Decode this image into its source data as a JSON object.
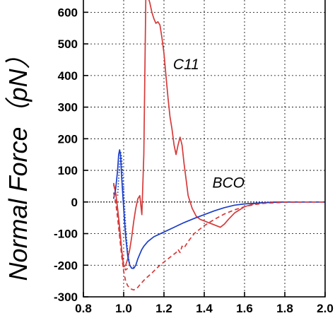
{
  "chart_data": {
    "type": "line",
    "title": "",
    "xlabel": "",
    "ylabel": "Normal Force（pN）",
    "xlim": [
      0.8,
      2.0
    ],
    "ylim": [
      -300,
      650
    ],
    "x_ticks": [
      0.8,
      1.0,
      1.2,
      1.4,
      1.6,
      1.8,
      2.0
    ],
    "x_tick_labels": [
      "0.8",
      "1.0",
      "1.2",
      "1.4",
      "1.6",
      "1.8",
      "2.0"
    ],
    "y_ticks": [
      -300,
      -200,
      -100,
      0,
      100,
      200,
      300,
      400,
      500,
      600
    ],
    "y_tick_labels": [
      "-300",
      "-200",
      "-100",
      "0",
      "100",
      "200",
      "300",
      "400",
      "500",
      "600"
    ],
    "grid": true,
    "annotations": [
      {
        "text": "C11",
        "x": 1.31,
        "y": 420
      },
      {
        "text": "BCO",
        "x": 1.52,
        "y": 45
      }
    ],
    "series": [
      {
        "color": "#d63a3a",
        "style": "solid",
        "x": [
          0.95,
          0.96,
          0.97,
          0.98,
          0.99,
          1.0,
          1.01,
          1.02,
          1.03,
          1.04,
          1.05,
          1.06,
          1.07,
          1.08,
          1.09,
          1.1,
          1.11,
          1.12,
          1.13,
          1.14,
          1.15,
          1.16,
          1.17,
          1.18,
          1.19,
          1.2,
          1.21,
          1.22,
          1.23,
          1.24,
          1.25,
          1.26,
          1.27,
          1.28,
          1.29,
          1.3,
          1.31,
          1.32,
          1.34,
          1.36,
          1.38,
          1.4,
          1.42,
          1.44,
          1.46,
          1.48,
          1.5,
          1.52,
          1.55,
          1.6,
          1.65,
          1.7,
          1.75,
          1.8,
          1.9,
          2.0
        ],
        "y": [
          60,
          30,
          -20,
          -80,
          -150,
          -205,
          -200,
          -180,
          -150,
          -110,
          -60,
          -20,
          10,
          20,
          -40,
          150,
          660,
          650,
          630,
          600,
          580,
          565,
          570,
          560,
          520,
          470,
          400,
          330,
          270,
          230,
          180,
          150,
          180,
          205,
          180,
          120,
          70,
          20,
          -20,
          -45,
          -55,
          -60,
          -65,
          -70,
          -75,
          -80,
          -70,
          -55,
          -35,
          -15,
          -5,
          -2,
          0,
          0,
          0,
          0
        ]
      },
      {
        "color": "#1a3ec8",
        "style": "solid",
        "x": [
          0.95,
          0.96,
          0.97,
          0.975,
          0.98,
          0.985,
          0.99,
          1.0,
          1.01,
          1.02,
          1.03,
          1.04,
          1.05,
          1.06,
          1.07,
          1.08,
          1.09,
          1.1,
          1.12,
          1.15,
          1.2,
          1.25,
          1.3,
          1.35,
          1.4,
          1.45,
          1.5,
          1.55,
          1.6,
          1.7,
          1.8,
          1.9,
          2.0
        ],
        "y": [
          10,
          40,
          100,
          150,
          165,
          145,
          80,
          -20,
          -110,
          -170,
          -200,
          -210,
          -210,
          -200,
          -180,
          -165,
          -150,
          -140,
          -125,
          -110,
          -95,
          -80,
          -65,
          -52,
          -40,
          -28,
          -18,
          -10,
          -6,
          -2,
          0,
          0,
          0
        ]
      },
      {
        "color": "#1a3ec8",
        "style": "dotted",
        "x": [
          0.97,
          0.98,
          0.985,
          0.99,
          1.0,
          1.01,
          1.02,
          1.03,
          1.04,
          1.05
        ],
        "y": [
          20,
          120,
          160,
          140,
          40,
          -80,
          -160,
          -200,
          -210,
          -205
        ]
      },
      {
        "color": "#d63a3a",
        "style": "dashed",
        "x": [
          0.95,
          0.96,
          0.97,
          0.98,
          0.99,
          1.0,
          1.01,
          1.02,
          1.03,
          1.04,
          1.05,
          1.06,
          1.07,
          1.08,
          1.09,
          1.1,
          1.12,
          1.14,
          1.16,
          1.18,
          1.2,
          1.22,
          1.24,
          1.26,
          1.27,
          1.28,
          1.29,
          1.3,
          1.32,
          1.35,
          1.4,
          1.45,
          1.5,
          1.55,
          1.6,
          1.65,
          1.7,
          1.8,
          1.9,
          2.0
        ],
        "y": [
          30,
          0,
          -50,
          -110,
          -170,
          -220,
          -250,
          -265,
          -272,
          -276,
          -278,
          -275,
          -270,
          -262,
          -255,
          -248,
          -236,
          -225,
          -212,
          -200,
          -190,
          -180,
          -170,
          -160,
          -150,
          -160,
          -140,
          -145,
          -125,
          -100,
          -75,
          -55,
          -38,
          -25,
          -15,
          -8,
          -4,
          -1,
          0,
          0
        ]
      },
      {
        "color": "#d63a3a",
        "style": "dashed",
        "x": [
          0.95,
          0.96,
          0.97,
          0.98,
          0.99,
          1.0,
          1.01,
          1.02,
          1.03
        ],
        "y": [
          55,
          30,
          -30,
          -100,
          -160,
          -200,
          -215,
          -210,
          -195
        ]
      }
    ]
  }
}
